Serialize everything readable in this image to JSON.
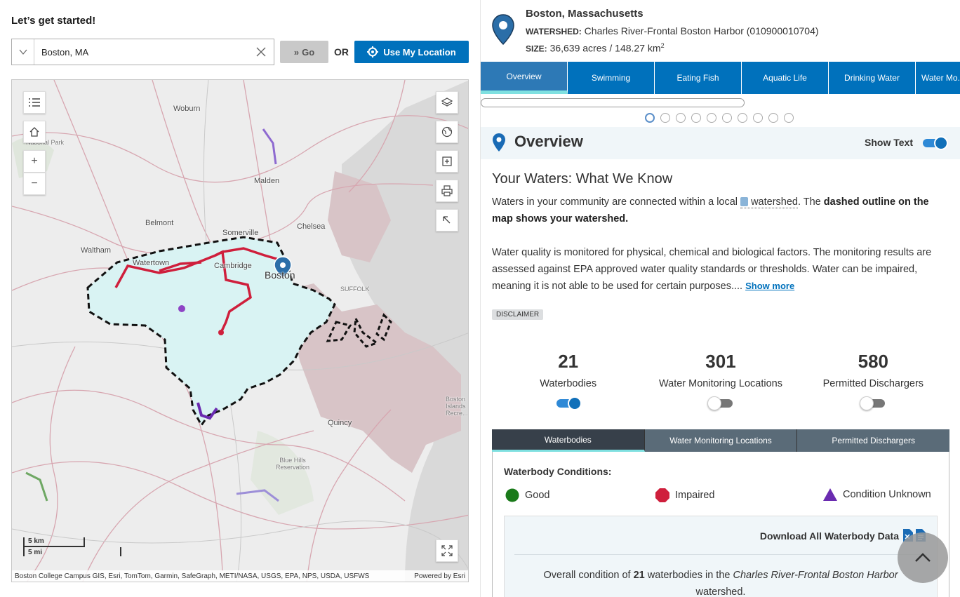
{
  "search": {
    "prompt": "Let’s get started!",
    "value": "Boston, MA",
    "go_label": "Go",
    "or_label": "OR",
    "location_label": "Use My Location"
  },
  "map": {
    "labels": {
      "woburn": "Woburn",
      "national_park": "National Park",
      "malden": "Malden",
      "belmont": "Belmont",
      "somerville": "Somerville",
      "chelsea": "Chelsea",
      "waltham": "Waltham",
      "watertown": "Watertown",
      "cambridge": "Cambridge",
      "boston": "Boston",
      "suffolk": "SUFFOLK",
      "quincy": "Quincy",
      "blue_hills": "Blue Hills Reservation",
      "boston_islands": "Boston Islands Recre..."
    },
    "scale_km": "5 km",
    "scale_mi": "5 mi",
    "attribution": "Boston College Campus GIS, Esri, TomTom, Garmin, SafeGraph, METI/NASA, USGS, EPA, NPS, USDA, USFWS",
    "powered_by": "Powered by Esri"
  },
  "header": {
    "city": "Boston, Massachusetts",
    "watershed_label": "WATERSHED:",
    "watershed_value": "Charles River-Frontal Boston Harbor (010900010704)",
    "size_label": "SIZE:",
    "size_value": "36,639 acres / 148.27 km",
    "size_sup": "2"
  },
  "tabs": [
    "Overview",
    "Swimming",
    "Eating Fish",
    "Aquatic Life",
    "Drinking Water",
    "Water Mo..."
  ],
  "overview": {
    "title": "Overview",
    "show_text_label": "Show Text",
    "heading": "Your Waters: What We Know",
    "para1_a": "Waters in your community are connected within a local ",
    "para1_link": "watershed",
    "para1_b": ". The ",
    "para1_bold": "dashed outline on the map shows your watershed.",
    "para2": "Water quality is monitored for physical, chemical and biological factors. The monitoring results are assessed against EPA approved water quality standards or thresholds. Water can be impaired, meaning it is not able to be used for certain purposes....",
    "show_more": "Show more",
    "disclaimer": "DISCLAIMER"
  },
  "stats": [
    {
      "value": "21",
      "label": "Waterbodies",
      "on": true
    },
    {
      "value": "301",
      "label": "Water Monitoring Locations",
      "on": false
    },
    {
      "value": "580",
      "label": "Permitted Dischargers",
      "on": false
    }
  ],
  "sub_tabs": [
    "Waterbodies",
    "Water Monitoring Locations",
    "Permitted Dischargers"
  ],
  "conditions": {
    "title": "Waterbody Conditions:",
    "good": "Good",
    "impaired": "Impaired",
    "unknown": "Condition Unknown",
    "colors": {
      "good": "#1a7a1a",
      "impaired": "#cf1f3c",
      "unknown": "#6a2bb0"
    }
  },
  "download": {
    "label": "Download All Waterbody Data",
    "overall_a": "Overall condition of ",
    "overall_count": "21",
    "overall_b": " waterbodies in the ",
    "overall_name": "Charles River-Frontal Boston Harbor",
    "overall_c": " watershed."
  }
}
